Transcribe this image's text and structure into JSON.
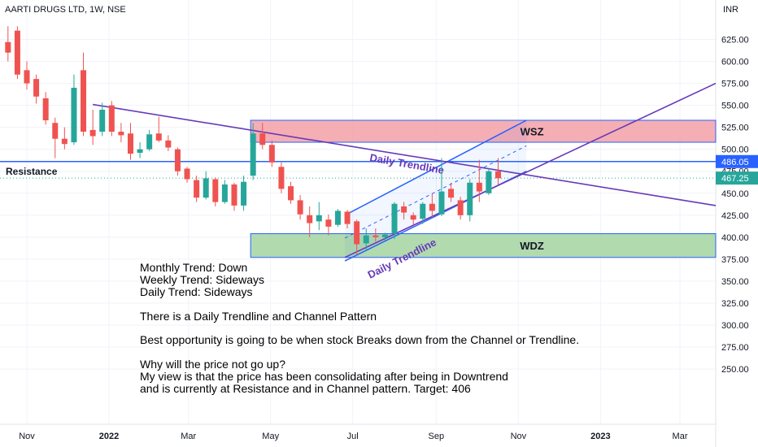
{
  "header": {
    "title": "AARTI DRUGS LTD, 1W, NSE",
    "currency": "INR"
  },
  "chart_data": {
    "type": "candlestick",
    "y_ticks": [
      625,
      600,
      575,
      550,
      525,
      500,
      475,
      450,
      425,
      400,
      375,
      350,
      325,
      300,
      275,
      250
    ],
    "y_tick_labels": [
      "625.00",
      "600.00",
      "575.00",
      "550.00",
      "525.00",
      "500.00",
      "475.00",
      "450.00",
      "425.00",
      "400.00",
      "375.00",
      "350.00",
      "325.00",
      "300.00",
      "275.00",
      "250.00"
    ],
    "x_labels": [
      "Nov",
      "2022",
      "Mar",
      "May",
      "Jul",
      "Sep",
      "Nov",
      "2023",
      "Mar"
    ],
    "x_label_dates": [
      "2021-11-01",
      "2022-01-01",
      "2022-03-01",
      "2022-05-01",
      "2022-07-01",
      "2022-09-01",
      "2022-11-01",
      "2023-01-01",
      "2023-03-01"
    ],
    "price_labels": [
      {
        "text": "486.05",
        "value": 486.05,
        "color": "#2962ff"
      },
      {
        "text": "467.25",
        "value": 467.25,
        "color": "#26a69a"
      }
    ],
    "candles": [
      {
        "date": "2021-10-18",
        "o": 622,
        "h": 640,
        "l": 600,
        "c": 610
      },
      {
        "date": "2021-10-25",
        "o": 635,
        "h": 640,
        "l": 580,
        "c": 585
      },
      {
        "date": "2021-11-01",
        "o": 590,
        "h": 600,
        "l": 568,
        "c": 575
      },
      {
        "date": "2021-11-08",
        "o": 580,
        "h": 585,
        "l": 552,
        "c": 560
      },
      {
        "date": "2021-11-15",
        "o": 558,
        "h": 565,
        "l": 528,
        "c": 533
      },
      {
        "date": "2021-11-22",
        "o": 530,
        "h": 536,
        "l": 490,
        "c": 512
      },
      {
        "date": "2021-11-29",
        "o": 512,
        "h": 525,
        "l": 500,
        "c": 506
      },
      {
        "date": "2021-12-06",
        "o": 508,
        "h": 585,
        "l": 505,
        "c": 570
      },
      {
        "date": "2021-12-13",
        "o": 590,
        "h": 610,
        "l": 515,
        "c": 520
      },
      {
        "date": "2021-12-20",
        "o": 522,
        "h": 545,
        "l": 505,
        "c": 515
      },
      {
        "date": "2021-12-27",
        "o": 520,
        "h": 553,
        "l": 515,
        "c": 545
      },
      {
        "date": "2022-01-03",
        "o": 550,
        "h": 555,
        "l": 515,
        "c": 520
      },
      {
        "date": "2022-01-10",
        "o": 520,
        "h": 530,
        "l": 508,
        "c": 516
      },
      {
        "date": "2022-01-17",
        "o": 518,
        "h": 530,
        "l": 488,
        "c": 495
      },
      {
        "date": "2022-01-24",
        "o": 496,
        "h": 508,
        "l": 490,
        "c": 500
      },
      {
        "date": "2022-01-31",
        "o": 500,
        "h": 522,
        "l": 498,
        "c": 517
      },
      {
        "date": "2022-02-07",
        "o": 518,
        "h": 537,
        "l": 508,
        "c": 510
      },
      {
        "date": "2022-02-14",
        "o": 510,
        "h": 516,
        "l": 498,
        "c": 502
      },
      {
        "date": "2022-02-21",
        "o": 500,
        "h": 502,
        "l": 470,
        "c": 475
      },
      {
        "date": "2022-02-28",
        "o": 478,
        "h": 480,
        "l": 462,
        "c": 466
      },
      {
        "date": "2022-03-07",
        "o": 465,
        "h": 470,
        "l": 440,
        "c": 445
      },
      {
        "date": "2022-03-14",
        "o": 445,
        "h": 475,
        "l": 443,
        "c": 467
      },
      {
        "date": "2022-03-21",
        "o": 466,
        "h": 468,
        "l": 435,
        "c": 440
      },
      {
        "date": "2022-03-28",
        "o": 440,
        "h": 465,
        "l": 438,
        "c": 460
      },
      {
        "date": "2022-04-04",
        "o": 460,
        "h": 462,
        "l": 430,
        "c": 436
      },
      {
        "date": "2022-04-11",
        "o": 436,
        "h": 470,
        "l": 430,
        "c": 463
      },
      {
        "date": "2022-04-18",
        "o": 470,
        "h": 530,
        "l": 465,
        "c": 518
      },
      {
        "date": "2022-04-25",
        "o": 518,
        "h": 530,
        "l": 500,
        "c": 505
      },
      {
        "date": "2022-05-02",
        "o": 505,
        "h": 510,
        "l": 480,
        "c": 485
      },
      {
        "date": "2022-05-09",
        "o": 480,
        "h": 485,
        "l": 450,
        "c": 455
      },
      {
        "date": "2022-05-16",
        "o": 458,
        "h": 463,
        "l": 438,
        "c": 442
      },
      {
        "date": "2022-05-23",
        "o": 442,
        "h": 448,
        "l": 420,
        "c": 426
      },
      {
        "date": "2022-05-30",
        "o": 425,
        "h": 435,
        "l": 400,
        "c": 416
      },
      {
        "date": "2022-06-06",
        "o": 418,
        "h": 440,
        "l": 408,
        "c": 425
      },
      {
        "date": "2022-06-13",
        "o": 420,
        "h": 426,
        "l": 402,
        "c": 412
      },
      {
        "date": "2022-06-20",
        "o": 414,
        "h": 432,
        "l": 412,
        "c": 430
      },
      {
        "date": "2022-06-27",
        "o": 429,
        "h": 431,
        "l": 410,
        "c": 415
      },
      {
        "date": "2022-07-04",
        "o": 418,
        "h": 420,
        "l": 380,
        "c": 392
      },
      {
        "date": "2022-07-11",
        "o": 393,
        "h": 410,
        "l": 385,
        "c": 402
      },
      {
        "date": "2022-07-18",
        "o": 402,
        "h": 410,
        "l": 395,
        "c": 400
      },
      {
        "date": "2022-07-25",
        "o": 400,
        "h": 405,
        "l": 396,
        "c": 403
      },
      {
        "date": "2022-08-01",
        "o": 404,
        "h": 440,
        "l": 398,
        "c": 438
      },
      {
        "date": "2022-08-08",
        "o": 435,
        "h": 440,
        "l": 420,
        "c": 428
      },
      {
        "date": "2022-08-15",
        "o": 425,
        "h": 428,
        "l": 414,
        "c": 420
      },
      {
        "date": "2022-08-22",
        "o": 421,
        "h": 440,
        "l": 415,
        "c": 438
      },
      {
        "date": "2022-08-29",
        "o": 438,
        "h": 450,
        "l": 422,
        "c": 430
      },
      {
        "date": "2022-09-05",
        "o": 426,
        "h": 490,
        "l": 424,
        "c": 452
      },
      {
        "date": "2022-09-12",
        "o": 455,
        "h": 462,
        "l": 440,
        "c": 445
      },
      {
        "date": "2022-09-19",
        "o": 442,
        "h": 446,
        "l": 420,
        "c": 425
      },
      {
        "date": "2022-09-26",
        "o": 425,
        "h": 466,
        "l": 418,
        "c": 462
      },
      {
        "date": "2022-10-03",
        "o": 462,
        "h": 488,
        "l": 440,
        "c": 452
      },
      {
        "date": "2022-10-10",
        "o": 450,
        "h": 478,
        "l": 448,
        "c": 475
      },
      {
        "date": "2022-10-17",
        "o": 475,
        "h": 490,
        "l": 460,
        "c": 467
      }
    ],
    "zones": [
      {
        "label": "WSZ",
        "low": 508,
        "high": 533,
        "color": "#f2a0a7",
        "border": "#2962ff"
      },
      {
        "label": "WDZ",
        "low": 377,
        "high": 404,
        "color": "#a3d3a1",
        "border": "#2962ff"
      }
    ],
    "resistance": {
      "label": "Resistance",
      "value": 486.05
    },
    "trendline_label_upper": "Daily Trendline",
    "trendline_label_lower": "Daily Trendline"
  },
  "notes": [
    "Monthly Trend: Down",
    "Weekly Trend: Sideways",
    "Daily Trend: Sideways",
    "There is a Daily Trendline and Channel Pattern",
    "Best opportunity is going to be when stock Breaks down from the Channel or Trendline.",
    "Why will the price not go up?",
    "My view is that the price has been consolidating after being in Downtrend",
    "and is currently at Resistance and in Channel pattern. Target: 406"
  ]
}
